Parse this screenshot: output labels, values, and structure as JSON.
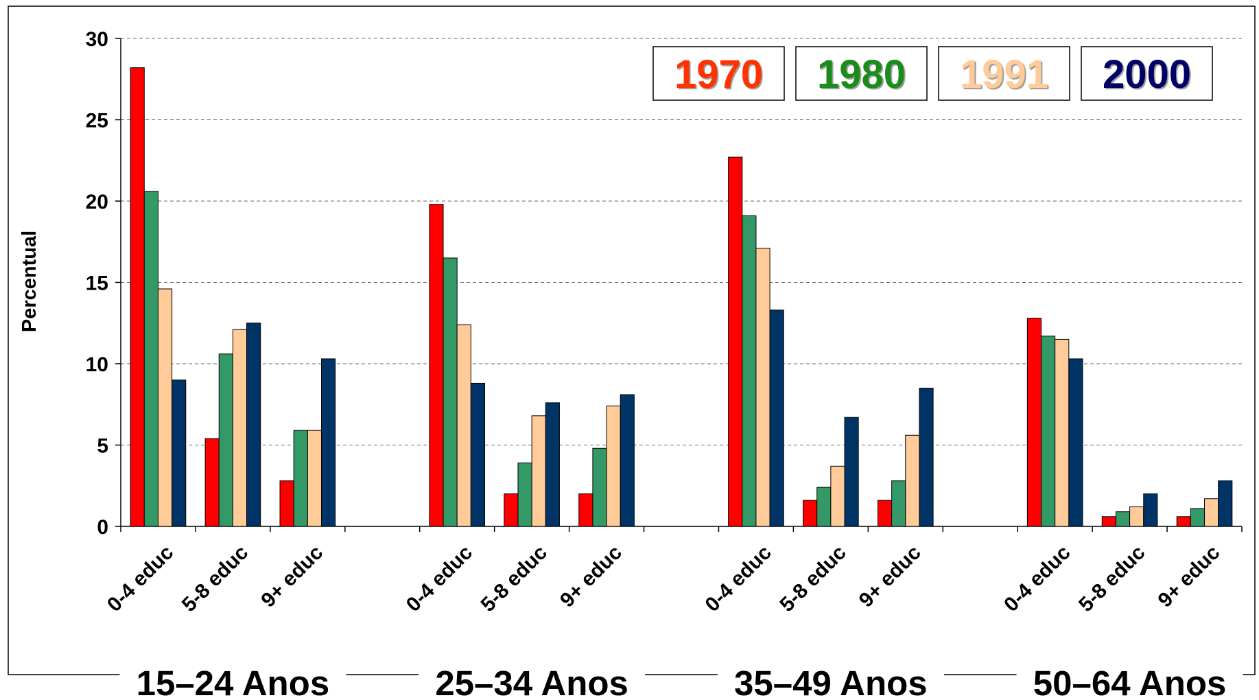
{
  "chart_data": {
    "type": "bar",
    "y_label": "Percentual",
    "categories": [
      "0-4 educ",
      "5-8 educ",
      "9+ educ",
      null,
      "0-4 educ",
      "5-8 educ",
      "9+ educ",
      null,
      "0-4 educ",
      "5-8 educ",
      "9+ educ",
      null,
      "0-4 educ",
      "5-8 educ",
      "9+ educ"
    ],
    "groups": [
      "15–24 Anos",
      "25–34 Anos",
      "35–49 Anos",
      "50–64 Anos"
    ],
    "series": [
      {
        "name": "1970",
        "color": "#ff0000",
        "legend_color": "#ff3300",
        "values": [
          28.2,
          5.4,
          2.8,
          null,
          19.8,
          2.0,
          2.0,
          null,
          22.7,
          1.6,
          1.6,
          null,
          12.8,
          0.6,
          0.6
        ]
      },
      {
        "name": "1980",
        "color": "#339966",
        "legend_color": "#1a8c1a",
        "values": [
          20.6,
          10.6,
          5.9,
          null,
          16.5,
          3.9,
          4.8,
          null,
          19.1,
          2.4,
          2.8,
          null,
          11.7,
          0.9,
          1.1
        ]
      },
      {
        "name": "1991",
        "color": "#ffcc99",
        "legend_color": "#ffcc99",
        "values": [
          14.6,
          12.1,
          5.9,
          null,
          12.4,
          6.8,
          7.4,
          null,
          17.1,
          3.7,
          5.6,
          null,
          11.5,
          1.2,
          1.7
        ]
      },
      {
        "name": "2000",
        "color": "#003366",
        "legend_color": "#000066",
        "values": [
          9.0,
          12.5,
          10.3,
          null,
          8.8,
          7.6,
          8.1,
          null,
          13.3,
          6.7,
          8.5,
          null,
          10.3,
          2.0,
          2.8
        ]
      }
    ],
    "ylim": [
      0,
      30
    ],
    "yticks": [
      0,
      5,
      10,
      15,
      20,
      25,
      30
    ],
    "grid": true
  }
}
